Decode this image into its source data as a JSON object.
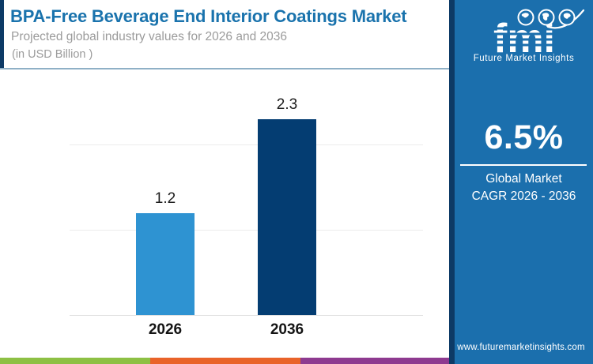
{
  "header": {
    "title": "BPA-Free Beverage End Interior Coatings Market",
    "subtitle": "Projected global industry values for 2026 and 2036",
    "unit": "(in USD Billion )"
  },
  "chart_data": {
    "type": "bar",
    "categories": [
      "2026",
      "2036"
    ],
    "values": [
      1.2,
      2.3
    ],
    "value_labels": [
      "1.2",
      "2.3"
    ],
    "title": "BPA-Free Beverage End Interior Coatings Market",
    "xlabel": "",
    "ylabel": "USD Billion",
    "ylim": [
      0,
      2.5
    ],
    "gridline_values": [
      0,
      1,
      2
    ],
    "grid": "horizontal-faint",
    "legend": "none",
    "bar_colors": [
      "#2e93d2",
      "#043d72"
    ]
  },
  "sidebar": {
    "logo": {
      "wordmark": "fmi",
      "tagline": "Future Market Insights",
      "icons": [
        "globe-americas-icon",
        "globe-europe-africa-icon",
        "globe-asia-pacific-icon",
        "orbit-swoosh-icon"
      ]
    },
    "cagr": {
      "value": "6.5%",
      "line1": "Global Market",
      "line2": "CAGR 2026 - 2036"
    },
    "website": "www.futuremarketinsights.com",
    "colors": {
      "background": "#1b6fad",
      "accent_stripe": "#0d3a66",
      "text": "#ffffff"
    }
  },
  "footer_strip": {
    "colors": [
      "#8dc044",
      "#e96329",
      "#8e3a90"
    ]
  },
  "accent_colors": {
    "title_blue": "#1a73ad",
    "bar_light_blue": "#2e93d2",
    "bar_dark_navy": "#043d72"
  }
}
